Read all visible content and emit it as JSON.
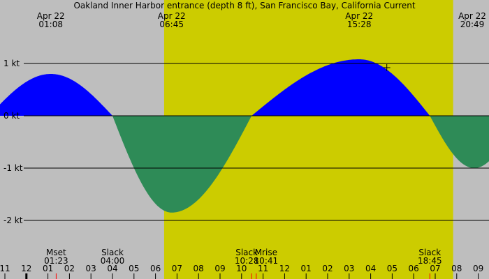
{
  "chart_data": {
    "type": "area",
    "title": "Oakland Inner Harbor entrance (depth 8 ft), San Francisco Bay, California Current",
    "ylabel_unit": "kt",
    "ylim": [
      -2.4,
      1.8
    ],
    "y_ticks": [
      {
        "value": 1,
        "label": "1 kt"
      },
      {
        "value": 0,
        "label": "0 kt"
      },
      {
        "value": -1,
        "label": "-1 kt"
      },
      {
        "value": -2,
        "label": "-2 kt"
      }
    ],
    "grid": true,
    "colors": {
      "background": "#bebebe",
      "daylight": "#cccc00",
      "flood": "#0000ff",
      "ebb": "#2e8b57",
      "event_tick": "#ff0000"
    },
    "daylight": {
      "start": "06:24",
      "end": "19:50"
    },
    "extrema": [
      {
        "date": "Apr 22",
        "time": "01:08",
        "value": 0.8
      },
      {
        "date": "Apr 22",
        "time": "06:45",
        "value": -1.85
      },
      {
        "date": "Apr 22",
        "time": "15:28",
        "value": 1.08
      },
      {
        "date": "Apr 22",
        "time": "20:49",
        "value": -1.0
      }
    ],
    "events": [
      {
        "label": "Mset",
        "time": "01:23"
      },
      {
        "label": "Slack",
        "time": "04:00"
      },
      {
        "label": "Slack",
        "time": "10:28"
      },
      {
        "label": "Mrise",
        "time": "10:41"
      },
      {
        "label": "Slack",
        "time": "18:45"
      }
    ],
    "hour_labels": [
      "11",
      "12",
      "01",
      "02",
      "03",
      "04",
      "05",
      "06",
      "07",
      "08",
      "09",
      "10",
      "11",
      "12",
      "01",
      "02",
      "03",
      "04",
      "05",
      "06",
      "07",
      "08",
      "09"
    ],
    "current_marker": {
      "time": "16:45",
      "value": 0.92
    }
  }
}
